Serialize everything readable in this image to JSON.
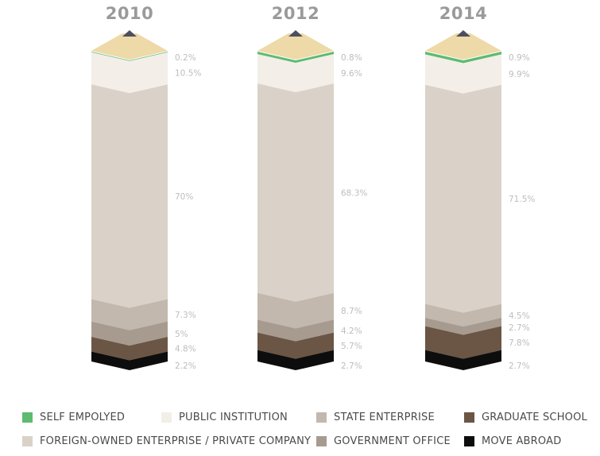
{
  "chart_data": {
    "type": "stacked-bar (pencil)",
    "categories": [
      "2010",
      "2012",
      "2014"
    ],
    "series": [
      {
        "name": "SELF EMPOLYED",
        "color": "#5dbb72",
        "values": [
          0.2,
          0.8,
          0.9
        ],
        "labels": [
          "0.2%",
          "0.8%",
          "0.9%"
        ]
      },
      {
        "name": "PUBLIC INSTITUTION",
        "color": "#f3efe8",
        "values": [
          10.5,
          9.6,
          9.9
        ],
        "labels": [
          "10.5%",
          "9.6%",
          "9.9%"
        ]
      },
      {
        "name": "FOREIGN-OWNED ENTERPRISE / PRIVATE COMPANY",
        "color": "#dad1c8",
        "values": [
          70,
          68.3,
          71.5
        ],
        "labels": [
          "70%",
          "68.3%",
          "71.5%"
        ]
      },
      {
        "name": "STATE ENTERPRISE",
        "color": "#c2b8ad",
        "values": [
          7.3,
          8.7,
          4.5
        ],
        "labels": [
          "7.3%",
          "8.7%",
          "4.5%"
        ]
      },
      {
        "name": "GOVERNMENT OFFICE",
        "color": "#a79b90",
        "values": [
          5,
          4.2,
          2.7
        ],
        "labels": [
          "5%",
          "4.2%",
          "2.7%"
        ]
      },
      {
        "name": "GRADUATE SCHOOL",
        "color": "#6b5545",
        "values": [
          4.8,
          5.7,
          7.8
        ],
        "labels": [
          "4.8%",
          "5.7%",
          "7.8%"
        ]
      },
      {
        "name": "MOVE ABROAD",
        "color": "#0d0d0d",
        "values": [
          2.2,
          2.7,
          2.7
        ],
        "labels": [
          "2.2%",
          "2.7%",
          "2.7%"
        ]
      }
    ],
    "legend": {
      "placement": "bottom",
      "rows": [
        [
          "SELF EMPOLYED",
          "PUBLIC INSTITUTION",
          "STATE ENTERPRISE",
          "GRADUATE SCHOOL"
        ],
        [
          "FOREIGN-OWNED ENTERPRISE / PRIVATE COMPANY",
          "GOVERNMENT OFFICE",
          "MOVE ABROAD"
        ]
      ]
    },
    "pencil_colors": {
      "wood": "#eed9a8",
      "graphite": "#4b4f60"
    }
  }
}
